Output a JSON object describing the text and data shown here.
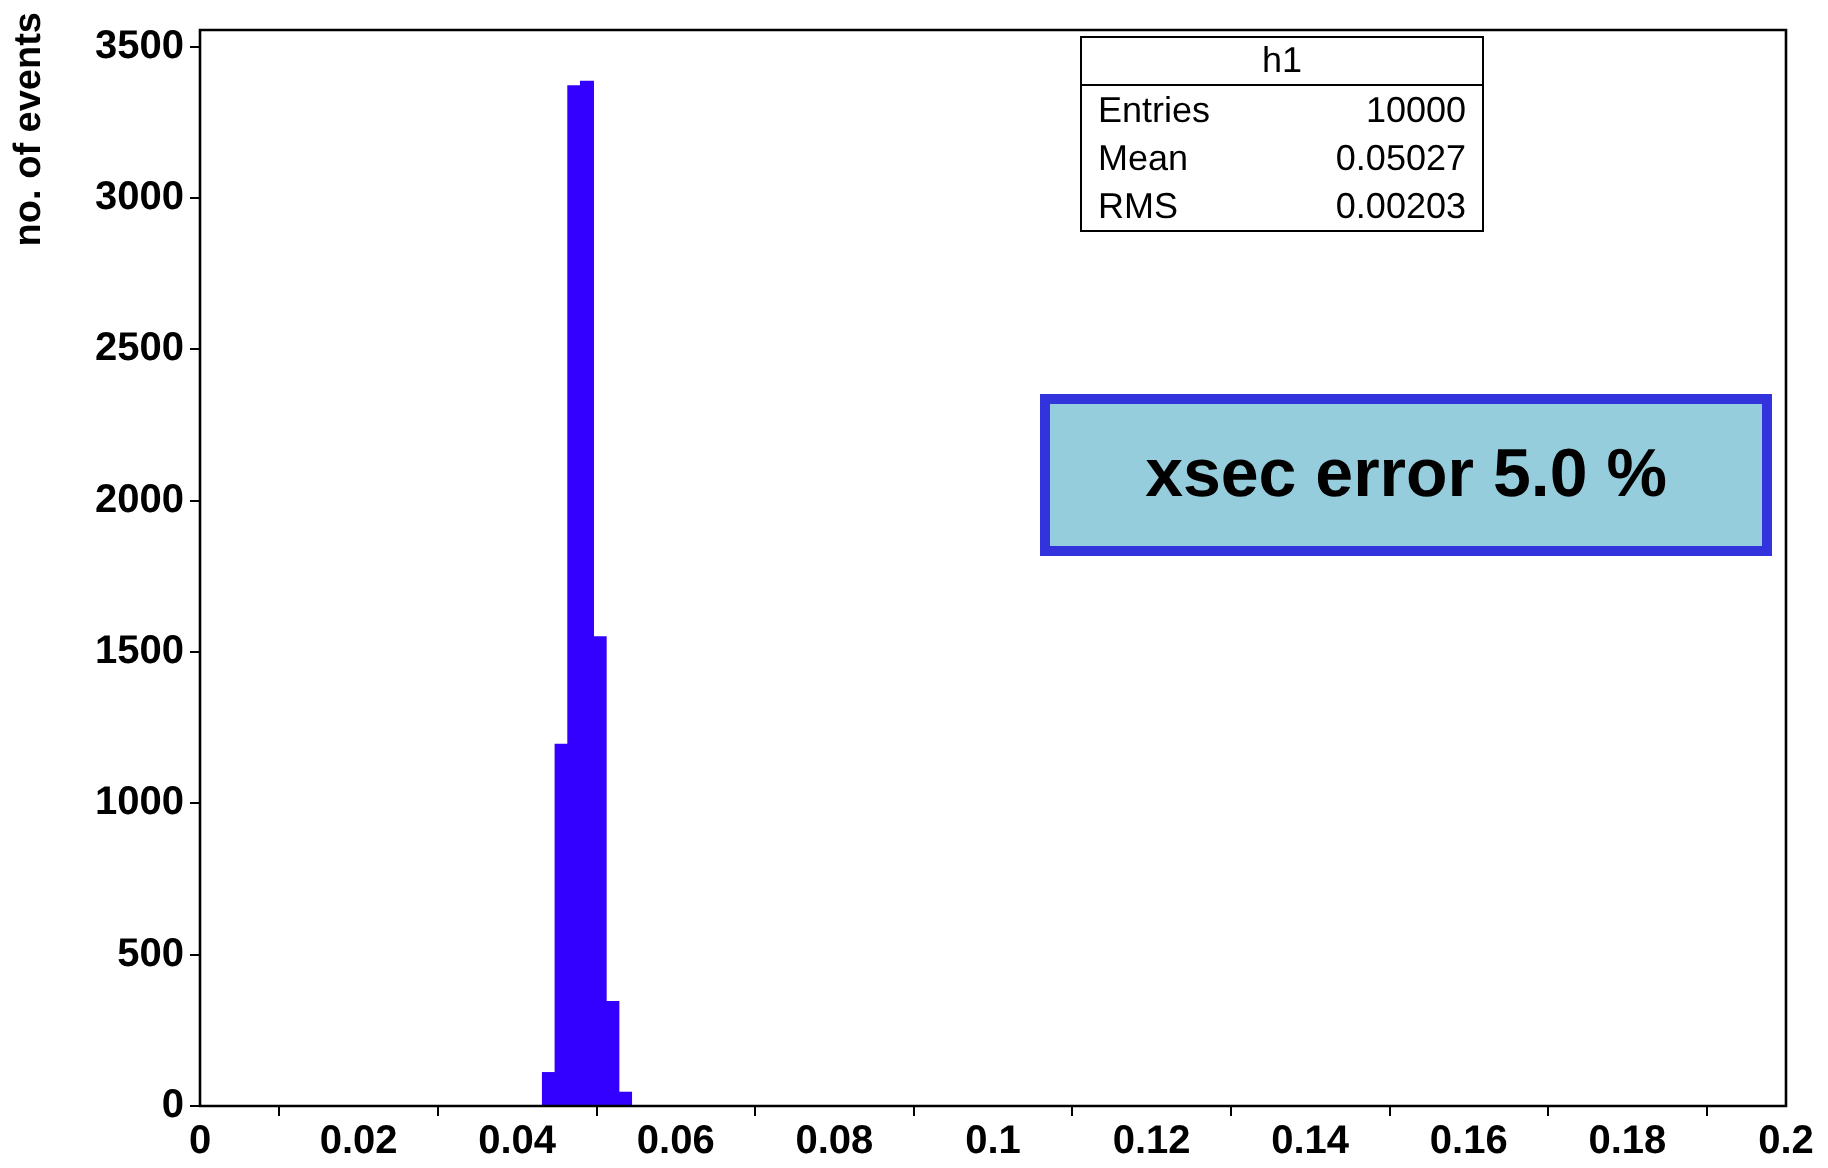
{
  "chart_data": {
    "type": "histogram",
    "ylabel": "no. of events",
    "bins": [
      0.0432,
      0.0448,
      0.0464,
      0.048,
      0.0496,
      0.0512,
      0.0528,
      0.0544
    ],
    "values": [
      110,
      1195,
      3370,
      3385,
      1550,
      345,
      45
    ],
    "color": "#3300ff",
    "xlim": [
      0,
      0.2
    ],
    "xticks": [
      0,
      0.02,
      0.04,
      0.06,
      0.08,
      0.1,
      0.12,
      0.14,
      0.16,
      0.18,
      0.2
    ],
    "ylim": [
      0,
      3555
    ],
    "yticks": [
      0,
      500,
      1000,
      1500,
      2000,
      2500,
      3000,
      3500
    ],
    "grid": false,
    "legend": false,
    "annotations": [
      "h1",
      "Entries",
      "10000",
      "Mean",
      "0.05027",
      "RMS",
      "0.00203",
      "xsec error 5.0 %"
    ]
  }
}
